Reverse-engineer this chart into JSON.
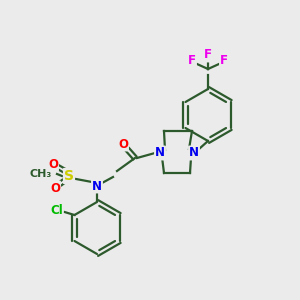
{
  "bg_color": "#ebebeb",
  "bond_color": "#2d5a2d",
  "bond_width": 1.6,
  "atom_colors": {
    "N": "#0000ee",
    "O": "#ff0000",
    "S": "#cccc00",
    "Cl": "#00bb00",
    "F": "#ee00ee",
    "C": "#2d5a2d"
  },
  "font_size": 8.5,
  "fig_size": [
    3.0,
    3.0
  ],
  "dpi": 100
}
